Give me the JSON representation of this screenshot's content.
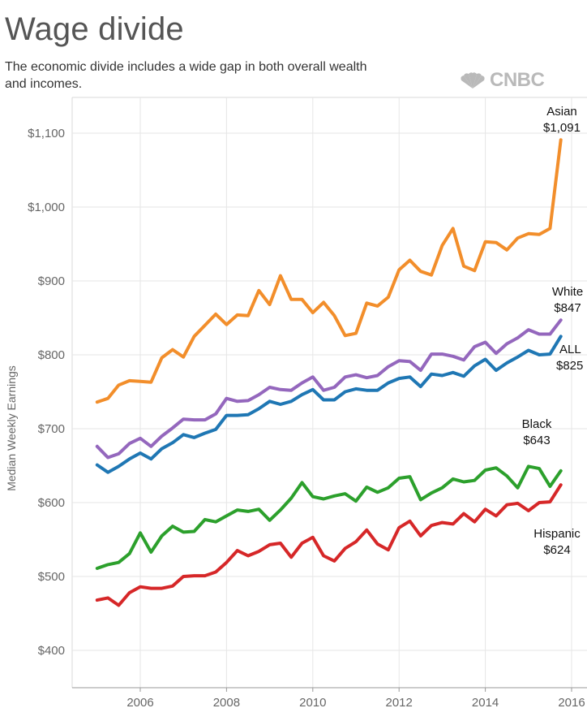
{
  "header": {
    "title": "Wage divide",
    "subtitle": "The economic divide includes a wide gap in both overall wealth and incomes.",
    "logo_text": "CNBC"
  },
  "chart_data": {
    "type": "line",
    "title": "Wage divide",
    "xlabel": "",
    "ylabel": "Median Weekly Earnings",
    "xlim": [
      2004.7,
      2016.2
    ],
    "ylim": [
      350,
      1150
    ],
    "x_ticks": [
      2006,
      2008,
      2010,
      2012,
      2014,
      2016
    ],
    "y_ticks": [
      400,
      500,
      600,
      700,
      800,
      900,
      1000,
      1100
    ],
    "y_tick_labels": [
      "$400",
      "$500",
      "$600",
      "$700",
      "$800",
      "$900",
      "$1,000",
      "$1,100"
    ],
    "grid": true,
    "x": [
      2005.0,
      2005.25,
      2005.5,
      2005.75,
      2006.0,
      2006.25,
      2006.5,
      2006.75,
      2007.0,
      2007.25,
      2007.5,
      2007.75,
      2008.0,
      2008.25,
      2008.5,
      2008.75,
      2009.0,
      2009.25,
      2009.5,
      2009.75,
      2010.0,
      2010.25,
      2010.5,
      2010.75,
      2011.0,
      2011.25,
      2011.5,
      2011.75,
      2012.0,
      2012.25,
      2012.5,
      2012.75,
      2013.0,
      2013.25,
      2013.5,
      2013.75,
      2014.0,
      2014.25,
      2014.5,
      2014.75,
      2015.0,
      2015.25,
      2015.5,
      2015.75
    ],
    "series": [
      {
        "name": "Asian",
        "color": "#f28e2b",
        "label_lines": [
          "Asian",
          "$1,091"
        ],
        "values": [
          736,
          741,
          759,
          765,
          764,
          763,
          796,
          807,
          797,
          825,
          840,
          855,
          841,
          854,
          853,
          887,
          868,
          907,
          875,
          875,
          857,
          871,
          853,
          826,
          829,
          870,
          866,
          878,
          915,
          928,
          913,
          908,
          948,
          971,
          920,
          914,
          953,
          952,
          942,
          958,
          964,
          963,
          971,
          1091
        ]
      },
      {
        "name": "White",
        "color": "#9467bd",
        "label_lines": [
          "White",
          "$847"
        ],
        "values": [
          676,
          661,
          666,
          680,
          687,
          676,
          690,
          701,
          713,
          712,
          712,
          720,
          741,
          737,
          738,
          746,
          756,
          753,
          752,
          762,
          770,
          752,
          756,
          770,
          773,
          769,
          772,
          784,
          792,
          791,
          779,
          801,
          801,
          798,
          793,
          811,
          817,
          802,
          815,
          823,
          834,
          828,
          828,
          847
        ]
      },
      {
        "name": "ALL",
        "color": "#1f77b4",
        "label_lines": [
          "ALL",
          "$825"
        ],
        "values": [
          651,
          641,
          649,
          659,
          667,
          659,
          673,
          681,
          692,
          688,
          694,
          699,
          718,
          718,
          719,
          727,
          737,
          733,
          737,
          746,
          753,
          739,
          739,
          750,
          754,
          752,
          752,
          762,
          768,
          770,
          757,
          774,
          772,
          776,
          771,
          785,
          794,
          779,
          789,
          797,
          806,
          800,
          801,
          825
        ]
      },
      {
        "name": "Black",
        "color": "#2ca02c",
        "label_lines": [
          "Black",
          "$643"
        ],
        "values": [
          511,
          516,
          519,
          531,
          559,
          533,
          555,
          568,
          560,
          561,
          577,
          574,
          582,
          590,
          588,
          591,
          576,
          590,
          606,
          627,
          608,
          605,
          609,
          612,
          602,
          621,
          614,
          620,
          633,
          635,
          604,
          613,
          620,
          632,
          628,
          630,
          644,
          647,
          636,
          620,
          649,
          646,
          622,
          643
        ]
      },
      {
        "name": "Hispanic",
        "color": "#d62728",
        "label_lines": [
          "Hispanic",
          "$624"
        ],
        "values": [
          468,
          471,
          461,
          478,
          486,
          484,
          484,
          487,
          500,
          501,
          501,
          506,
          519,
          535,
          528,
          534,
          543,
          545,
          526,
          545,
          553,
          528,
          521,
          538,
          547,
          563,
          544,
          536,
          566,
          575,
          555,
          569,
          573,
          571,
          585,
          574,
          591,
          582,
          597,
          599,
          589,
          600,
          601,
          624
        ]
      }
    ]
  }
}
